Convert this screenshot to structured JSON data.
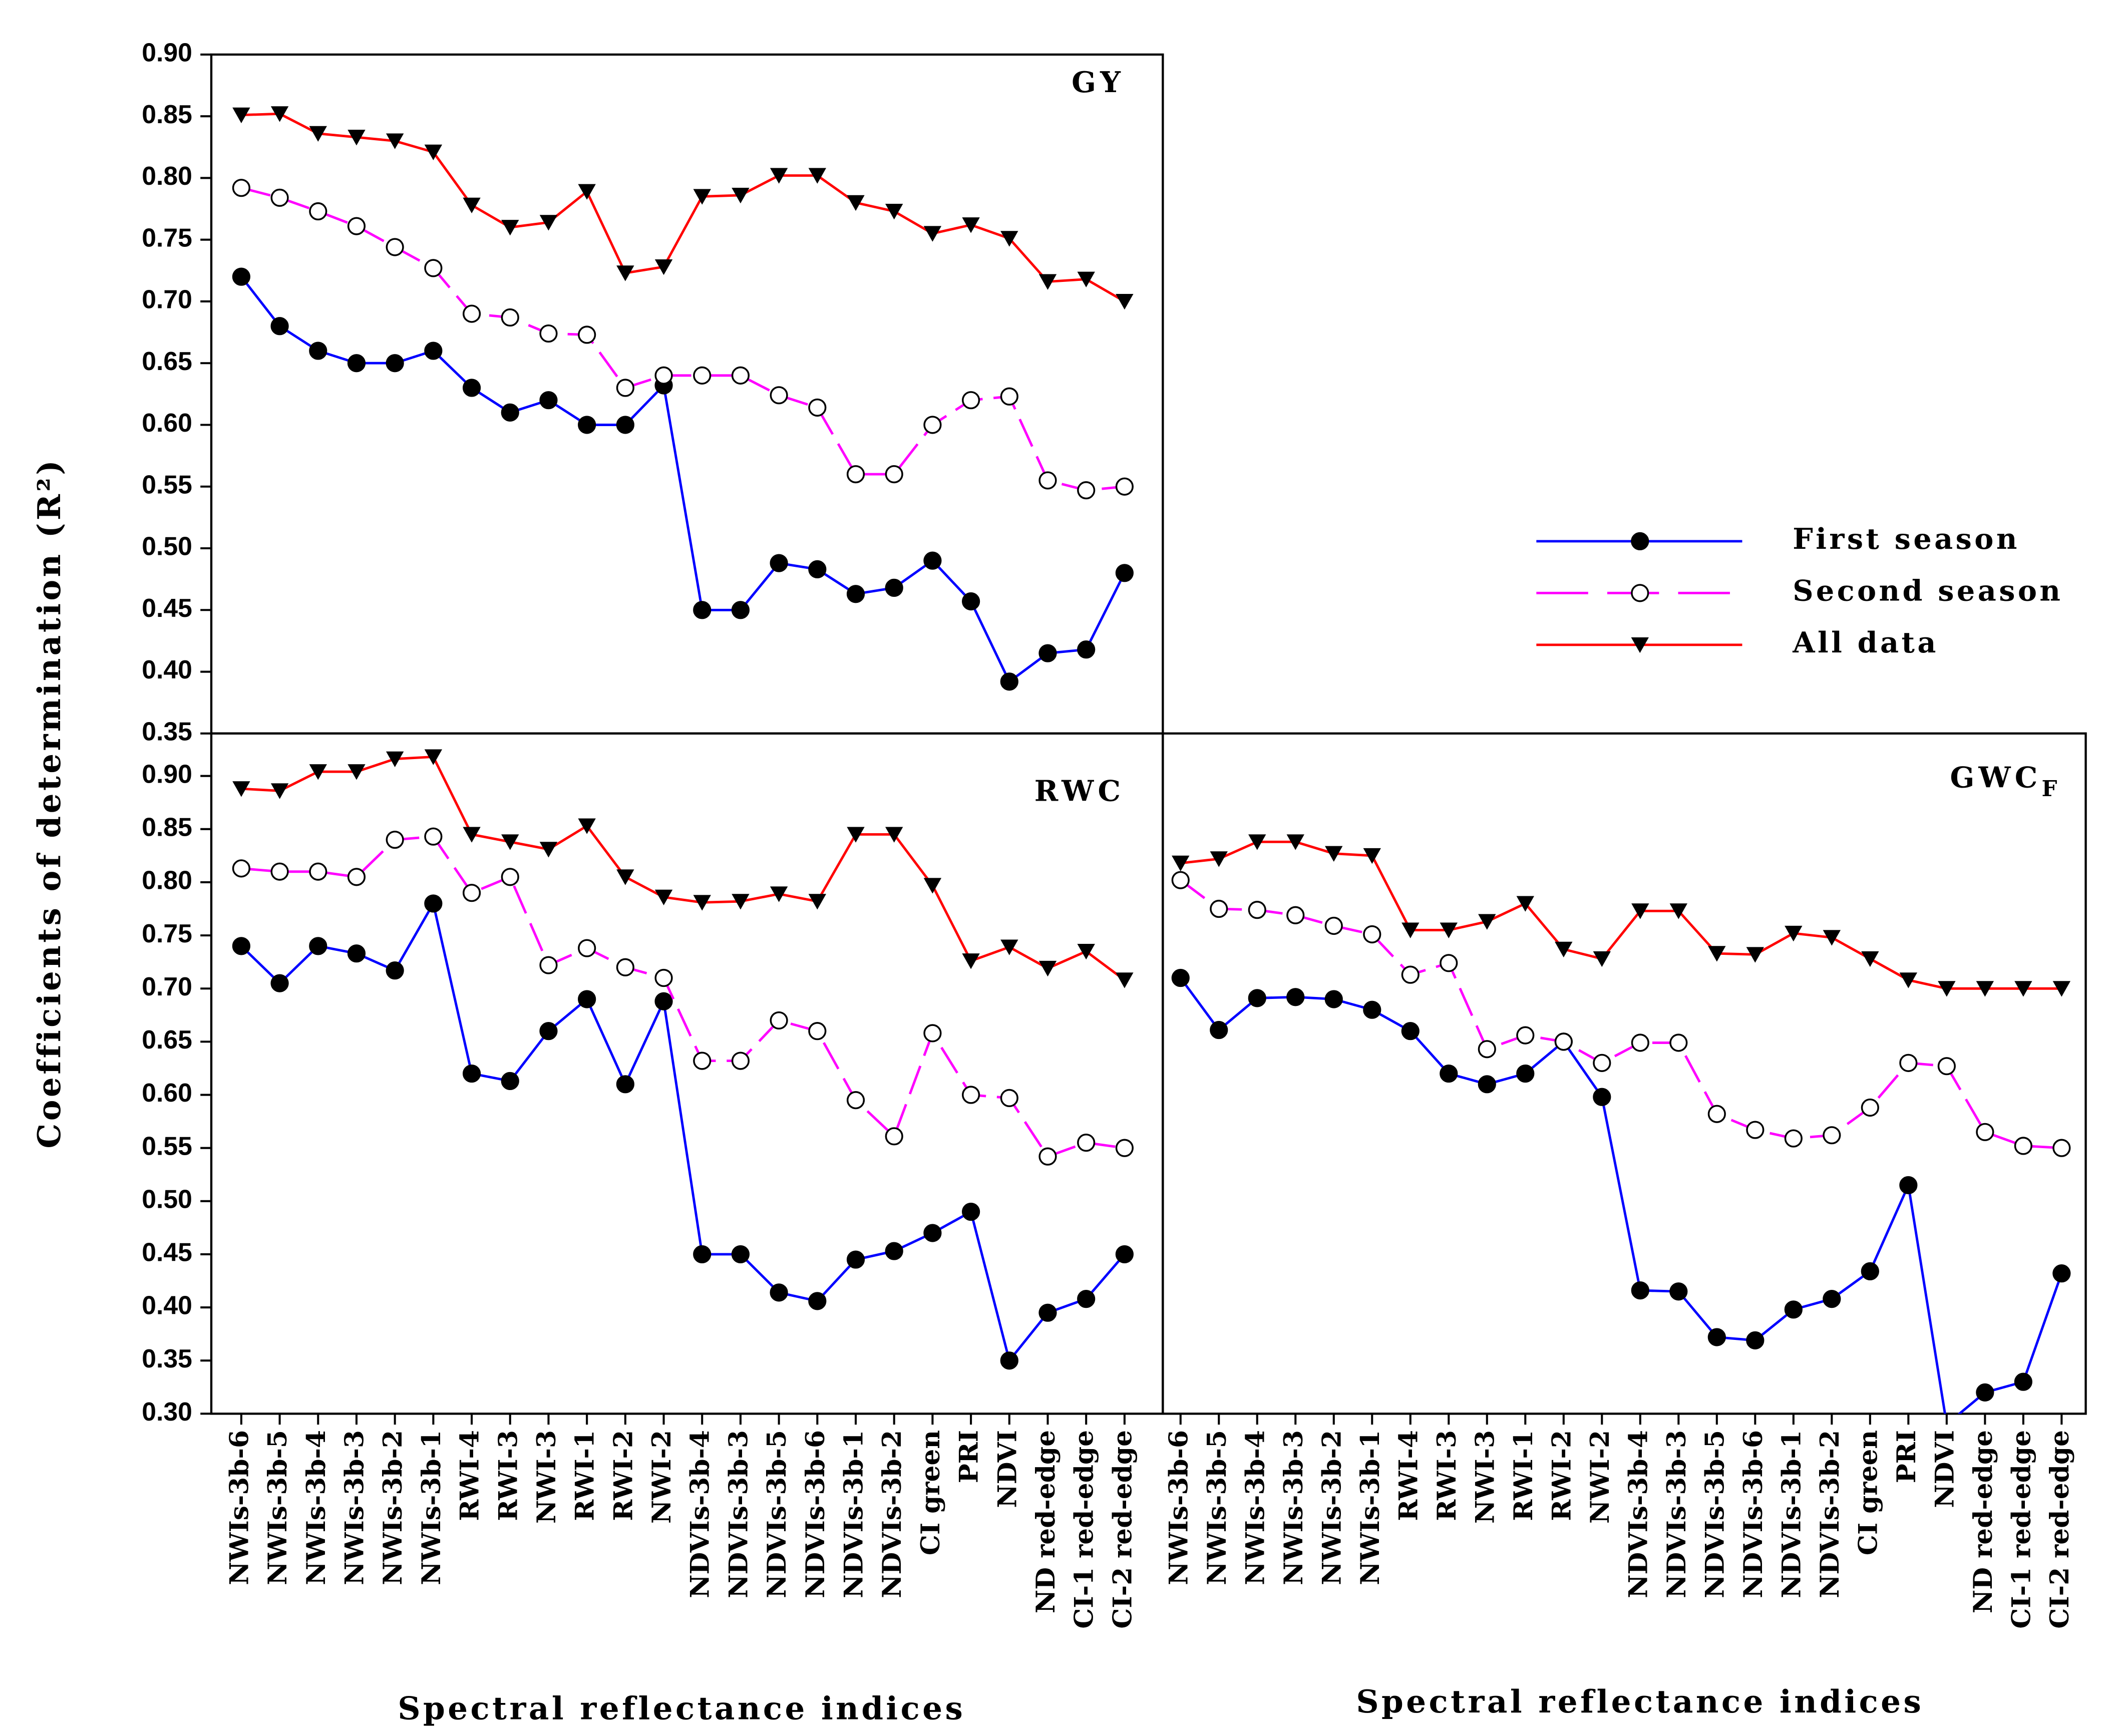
{
  "chart_data": [
    {
      "type": "line",
      "title": "GY",
      "categories": [
        null,
        null,
        null,
        null,
        null,
        null,
        null,
        null,
        null,
        null,
        null,
        null,
        null,
        null,
        null,
        null,
        null,
        null,
        null,
        null,
        null,
        null,
        null,
        null
      ],
      "y_label": "Coefficients of determination (R²)",
      "ylim": [
        0.35,
        0.9
      ],
      "yticks": [
        {
          "value": 0.35,
          "label": "0.35"
        },
        {
          "value": 0.4,
          "label": "0.40"
        },
        {
          "value": 0.45,
          "label": "0.45"
        },
        {
          "value": 0.5,
          "label": "0.50"
        },
        {
          "value": 0.55,
          "label": "0.55"
        },
        {
          "value": 0.6,
          "label": "0.60"
        },
        {
          "value": 0.65,
          "label": "0.65"
        },
        {
          "value": 0.7,
          "label": "0.70"
        },
        {
          "value": 0.75,
          "label": "0.75"
        },
        {
          "value": 0.8,
          "label": "0.80"
        },
        {
          "value": 0.85,
          "label": "0.85"
        },
        {
          "value": 0.9,
          "label": "0.90"
        }
      ],
      "legend": "right",
      "series": [
        {
          "name": "First season",
          "color": "#0000ff",
          "marker": "filled-circle",
          "dash": false,
          "values": [
            0.72,
            0.68,
            0.66,
            0.65,
            0.65,
            0.66,
            0.63,
            0.61,
            0.62,
            0.6,
            0.6,
            0.632,
            0.45,
            0.45,
            0.488,
            0.483,
            0.463,
            0.468,
            0.49,
            0.457,
            0.392,
            0.415,
            0.418,
            0.48
          ]
        },
        {
          "name": "Second season",
          "color": "#ff00ff",
          "marker": "open-circle",
          "dash": true,
          "values": [
            0.792,
            0.784,
            0.773,
            0.761,
            0.744,
            0.727,
            0.69,
            0.687,
            0.674,
            0.673,
            0.63,
            0.64,
            0.64,
            0.64,
            0.624,
            0.614,
            0.56,
            0.56,
            0.6,
            0.62,
            0.623,
            0.555,
            0.547,
            0.55
          ]
        },
        {
          "name": "All data",
          "color": "#ff0000",
          "marker": "down-triangle",
          "dash": false,
          "values": [
            0.851,
            0.852,
            0.836,
            0.833,
            0.83,
            0.821,
            0.778,
            0.76,
            0.764,
            0.789,
            0.723,
            0.728,
            0.785,
            0.786,
            0.802,
            0.802,
            0.78,
            0.773,
            0.755,
            0.762,
            0.751,
            0.716,
            0.718,
            0.7
          ]
        }
      ]
    },
    {
      "type": "line",
      "title": "RWC",
      "categories": [
        "NWIs-3b-6",
        "NWIs-3b-5",
        "NWIs-3b-4",
        "NWIs-3b-3",
        "NWIs-3b-2",
        "NWIs-3b-1",
        "RWI-4",
        "RWI-3",
        "NWI-3",
        "RWI-1",
        "RWI-2",
        "NWI-2",
        "NDVIs-3b-4",
        "NDVIs-3b-3",
        "NDVIs-3b-5",
        "NDVIs-3b-6",
        "NDVIs-3b-1",
        "NDVIs-3b-2",
        "CI green",
        "PRI",
        "NDVI",
        "ND red-edge",
        "CI-1 red-edge",
        "CI-2 red-edge"
      ],
      "x_label": "Spectral reflectance indices",
      "ylim": [
        0.3,
        0.94
      ],
      "yticks": [
        {
          "value": 0.3,
          "label": "0.30"
        },
        {
          "value": 0.35,
          "label": "0.35"
        },
        {
          "value": 0.4,
          "label": "0.40"
        },
        {
          "value": 0.45,
          "label": "0.45"
        },
        {
          "value": 0.5,
          "label": "0.50"
        },
        {
          "value": 0.55,
          "label": "0.55"
        },
        {
          "value": 0.6,
          "label": "0.60"
        },
        {
          "value": 0.65,
          "label": "0.65"
        },
        {
          "value": 0.7,
          "label": "0.70"
        },
        {
          "value": 0.75,
          "label": "0.75"
        },
        {
          "value": 0.8,
          "label": "0.80"
        },
        {
          "value": 0.85,
          "label": "0.85"
        },
        {
          "value": 0.9,
          "label": "0.90"
        }
      ],
      "series": [
        {
          "name": "First season",
          "color": "#0000ff",
          "marker": "filled-circle",
          "dash": false,
          "values": [
            0.74,
            0.705,
            0.74,
            0.733,
            0.717,
            0.78,
            0.62,
            0.613,
            0.66,
            0.69,
            0.61,
            0.688,
            0.45,
            0.45,
            0.414,
            0.406,
            0.445,
            0.453,
            0.47,
            0.49,
            0.35,
            0.395,
            0.408,
            0.45
          ]
        },
        {
          "name": "Second season",
          "color": "#ff00ff",
          "marker": "open-circle",
          "dash": true,
          "values": [
            0.813,
            0.81,
            0.81,
            0.805,
            0.84,
            0.843,
            0.79,
            0.805,
            0.722,
            0.738,
            0.72,
            0.71,
            0.632,
            0.632,
            0.67,
            0.66,
            0.595,
            0.561,
            0.658,
            0.6,
            0.597,
            0.542,
            0.555,
            0.55
          ]
        },
        {
          "name": "All data",
          "color": "#ff0000",
          "marker": "down-triangle",
          "dash": false,
          "values": [
            0.888,
            0.886,
            0.904,
            0.904,
            0.916,
            0.918,
            0.845,
            0.838,
            0.831,
            0.853,
            0.805,
            0.786,
            0.781,
            0.782,
            0.789,
            0.782,
            0.845,
            0.845,
            0.797,
            0.726,
            0.739,
            0.719,
            0.735,
            0.708
          ]
        }
      ]
    },
    {
      "type": "line",
      "title": "GWC",
      "title_subscript": "F",
      "categories": [
        "NWIs-3b-6",
        "NWIs-3b-5",
        "NWIs-3b-4",
        "NWIs-3b-3",
        "NWIs-3b-2",
        "NWIs-3b-1",
        "RWI-4",
        "RWI-3",
        "NWI-3",
        "RWI-1",
        "RWI-2",
        "NWI-2",
        "NDVIs-3b-4",
        "NDVIs-3b-3",
        "NDVIs-3b-5",
        "NDVIs-3b-6",
        "NDVIs-3b-1",
        "NDVIs-3b-2",
        "CI green",
        "PRI",
        "NDVI",
        "ND red-edge",
        "CI-1 red-edge",
        "CI-2 red-edge"
      ],
      "x_label": "Spectral reflectance indices",
      "ylim": [
        0.3,
        0.94
      ],
      "series": [
        {
          "name": "First season",
          "color": "#0000ff",
          "marker": "filled-circle",
          "dash": false,
          "values": [
            0.71,
            0.661,
            0.691,
            0.692,
            0.69,
            0.68,
            0.66,
            0.62,
            0.61,
            0.62,
            0.65,
            0.598,
            0.416,
            0.415,
            0.372,
            0.369,
            0.398,
            0.408,
            0.434,
            0.515,
            0.29,
            0.32,
            0.33,
            0.432
          ]
        },
        {
          "name": "Second season",
          "color": "#ff00ff",
          "marker": "open-circle",
          "dash": true,
          "values": [
            0.802,
            0.775,
            0.774,
            0.769,
            0.759,
            0.751,
            0.713,
            0.724,
            0.643,
            0.656,
            0.65,
            0.63,
            0.649,
            0.649,
            0.582,
            0.567,
            0.559,
            0.562,
            0.588,
            0.63,
            0.627,
            0.565,
            0.552,
            0.55
          ]
        },
        {
          "name": "All data",
          "color": "#ff0000",
          "marker": "down-triangle",
          "dash": false,
          "values": [
            0.818,
            0.822,
            0.838,
            0.838,
            0.827,
            0.825,
            0.755,
            0.755,
            0.763,
            0.78,
            0.737,
            0.728,
            0.773,
            0.773,
            0.733,
            0.732,
            0.752,
            0.748,
            0.728,
            0.708,
            0.7,
            0.7,
            0.7,
            0.7
          ]
        }
      ]
    }
  ]
}
